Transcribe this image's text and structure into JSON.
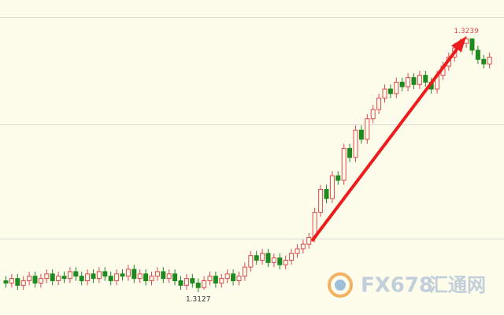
{
  "chart_data": {
    "type": "candlestick",
    "up_color": "#e0474c",
    "down_color": "#1f8a1f",
    "ylim": [
      1.3117,
      1.3255
    ],
    "open": [
      1.3132,
      1.3131,
      1.3133,
      1.313,
      1.3132,
      1.3134,
      1.3131,
      1.3133,
      1.3135,
      1.3132,
      1.3134,
      1.3133,
      1.3136,
      1.3134,
      1.3132,
      1.3135,
      1.3133,
      1.3136,
      1.3134,
      1.3132,
      1.3135,
      1.3134,
      1.3137,
      1.3133,
      1.3135,
      1.3132,
      1.3134,
      1.3136,
      1.3133,
      1.3135,
      1.3132,
      1.313,
      1.3133,
      1.3131,
      1.3129,
      1.3132,
      1.3134,
      1.3131,
      1.3133,
      1.3135,
      1.3132,
      1.3134,
      1.3138,
      1.3143,
      1.3141,
      1.3144,
      1.314,
      1.3142,
      1.3139,
      1.3141,
      1.3144,
      1.3146,
      1.3148,
      1.3151,
      1.3162,
      1.3172,
      1.3168,
      1.3178,
      1.3176,
      1.319,
      1.3186,
      1.3198,
      1.3194,
      1.3203,
      1.3207,
      1.3212,
      1.3216,
      1.3214,
      1.3219,
      1.3217,
      1.3221,
      1.3218,
      1.3222,
      1.3219,
      1.3216,
      1.3222,
      1.3226,
      1.323,
      1.3234,
      1.3236,
      1.3238,
      1.3233,
      1.3229,
      1.3227
    ],
    "high": [
      1.3134,
      1.3135,
      1.3135,
      1.3134,
      1.3136,
      1.3136,
      1.3135,
      1.3137,
      1.3137,
      1.3136,
      1.3136,
      1.3138,
      1.3138,
      1.3136,
      1.3137,
      1.3137,
      1.3138,
      1.3138,
      1.3136,
      1.3137,
      1.3137,
      1.3139,
      1.3139,
      1.3137,
      1.3137,
      1.3136,
      1.3138,
      1.3138,
      1.3137,
      1.3137,
      1.3134,
      1.3135,
      1.3135,
      1.3133,
      1.3134,
      1.3136,
      1.3136,
      1.3135,
      1.3137,
      1.3137,
      1.3136,
      1.314,
      1.3145,
      1.3145,
      1.3146,
      1.3146,
      1.3144,
      1.3144,
      1.3143,
      1.3146,
      1.3148,
      1.315,
      1.3153,
      1.3164,
      1.3174,
      1.3174,
      1.318,
      1.318,
      1.3192,
      1.3192,
      1.32,
      1.32,
      1.3205,
      1.3209,
      1.3214,
      1.3218,
      1.3218,
      1.3221,
      1.3221,
      1.3223,
      1.3223,
      1.3224,
      1.3224,
      1.3221,
      1.3224,
      1.3228,
      1.3232,
      1.3236,
      1.3238,
      1.3239,
      1.3238,
      1.3235,
      1.3231,
      1.3232
    ],
    "low": [
      1.3129,
      1.3129,
      1.3128,
      1.3128,
      1.313,
      1.3129,
      1.3129,
      1.3131,
      1.313,
      1.313,
      1.3131,
      1.3131,
      1.3132,
      1.313,
      1.313,
      1.3131,
      1.3131,
      1.3132,
      1.313,
      1.313,
      1.3132,
      1.3132,
      1.3131,
      1.3131,
      1.313,
      1.313,
      1.3132,
      1.3131,
      1.3131,
      1.313,
      1.3128,
      1.3128,
      1.3129,
      1.3127,
      1.3128,
      1.313,
      1.3129,
      1.3129,
      1.3131,
      1.313,
      1.313,
      1.3132,
      1.3136,
      1.3139,
      1.3139,
      1.3138,
      1.3138,
      1.3137,
      1.3137,
      1.3139,
      1.3142,
      1.3144,
      1.3146,
      1.3149,
      1.316,
      1.3166,
      1.3166,
      1.3174,
      1.3174,
      1.3184,
      1.3184,
      1.3192,
      1.3192,
      1.3201,
      1.3205,
      1.321,
      1.3212,
      1.3212,
      1.3215,
      1.3215,
      1.3216,
      1.3216,
      1.3217,
      1.3214,
      1.3214,
      1.322,
      1.3224,
      1.3228,
      1.3232,
      1.3234,
      1.3231,
      1.3227,
      1.3225,
      1.3225
    ],
    "close": [
      1.3131,
      1.3133,
      1.313,
      1.3132,
      1.3134,
      1.3131,
      1.3133,
      1.3135,
      1.3132,
      1.3134,
      1.3133,
      1.3136,
      1.3134,
      1.3132,
      1.3135,
      1.3133,
      1.3136,
      1.3134,
      1.3132,
      1.3135,
      1.3134,
      1.3137,
      1.3133,
      1.3135,
      1.3132,
      1.3134,
      1.3136,
      1.3133,
      1.3135,
      1.3132,
      1.313,
      1.3133,
      1.3131,
      1.3129,
      1.3132,
      1.3134,
      1.3131,
      1.3133,
      1.3135,
      1.3132,
      1.3134,
      1.3138,
      1.3143,
      1.3141,
      1.3144,
      1.314,
      1.3142,
      1.3139,
      1.3141,
      1.3144,
      1.3146,
      1.3148,
      1.3151,
      1.3162,
      1.3172,
      1.3168,
      1.3178,
      1.3176,
      1.319,
      1.3186,
      1.3198,
      1.3194,
      1.3203,
      1.3207,
      1.3212,
      1.3216,
      1.3214,
      1.3219,
      1.3217,
      1.3221,
      1.3218,
      1.3222,
      1.3219,
      1.3216,
      1.3222,
      1.3226,
      1.323,
      1.3234,
      1.3236,
      1.3238,
      1.3233,
      1.3229,
      1.3227,
      1.323
    ],
    "annotations": [
      {
        "value": 1.3239,
        "label": "1.3239",
        "color": "#e0474c"
      },
      {
        "value": 1.3127,
        "label": "1.3127",
        "color": "#333333"
      }
    ]
  },
  "watermark": {
    "brand": "FX678",
    "name": "汇通网"
  }
}
